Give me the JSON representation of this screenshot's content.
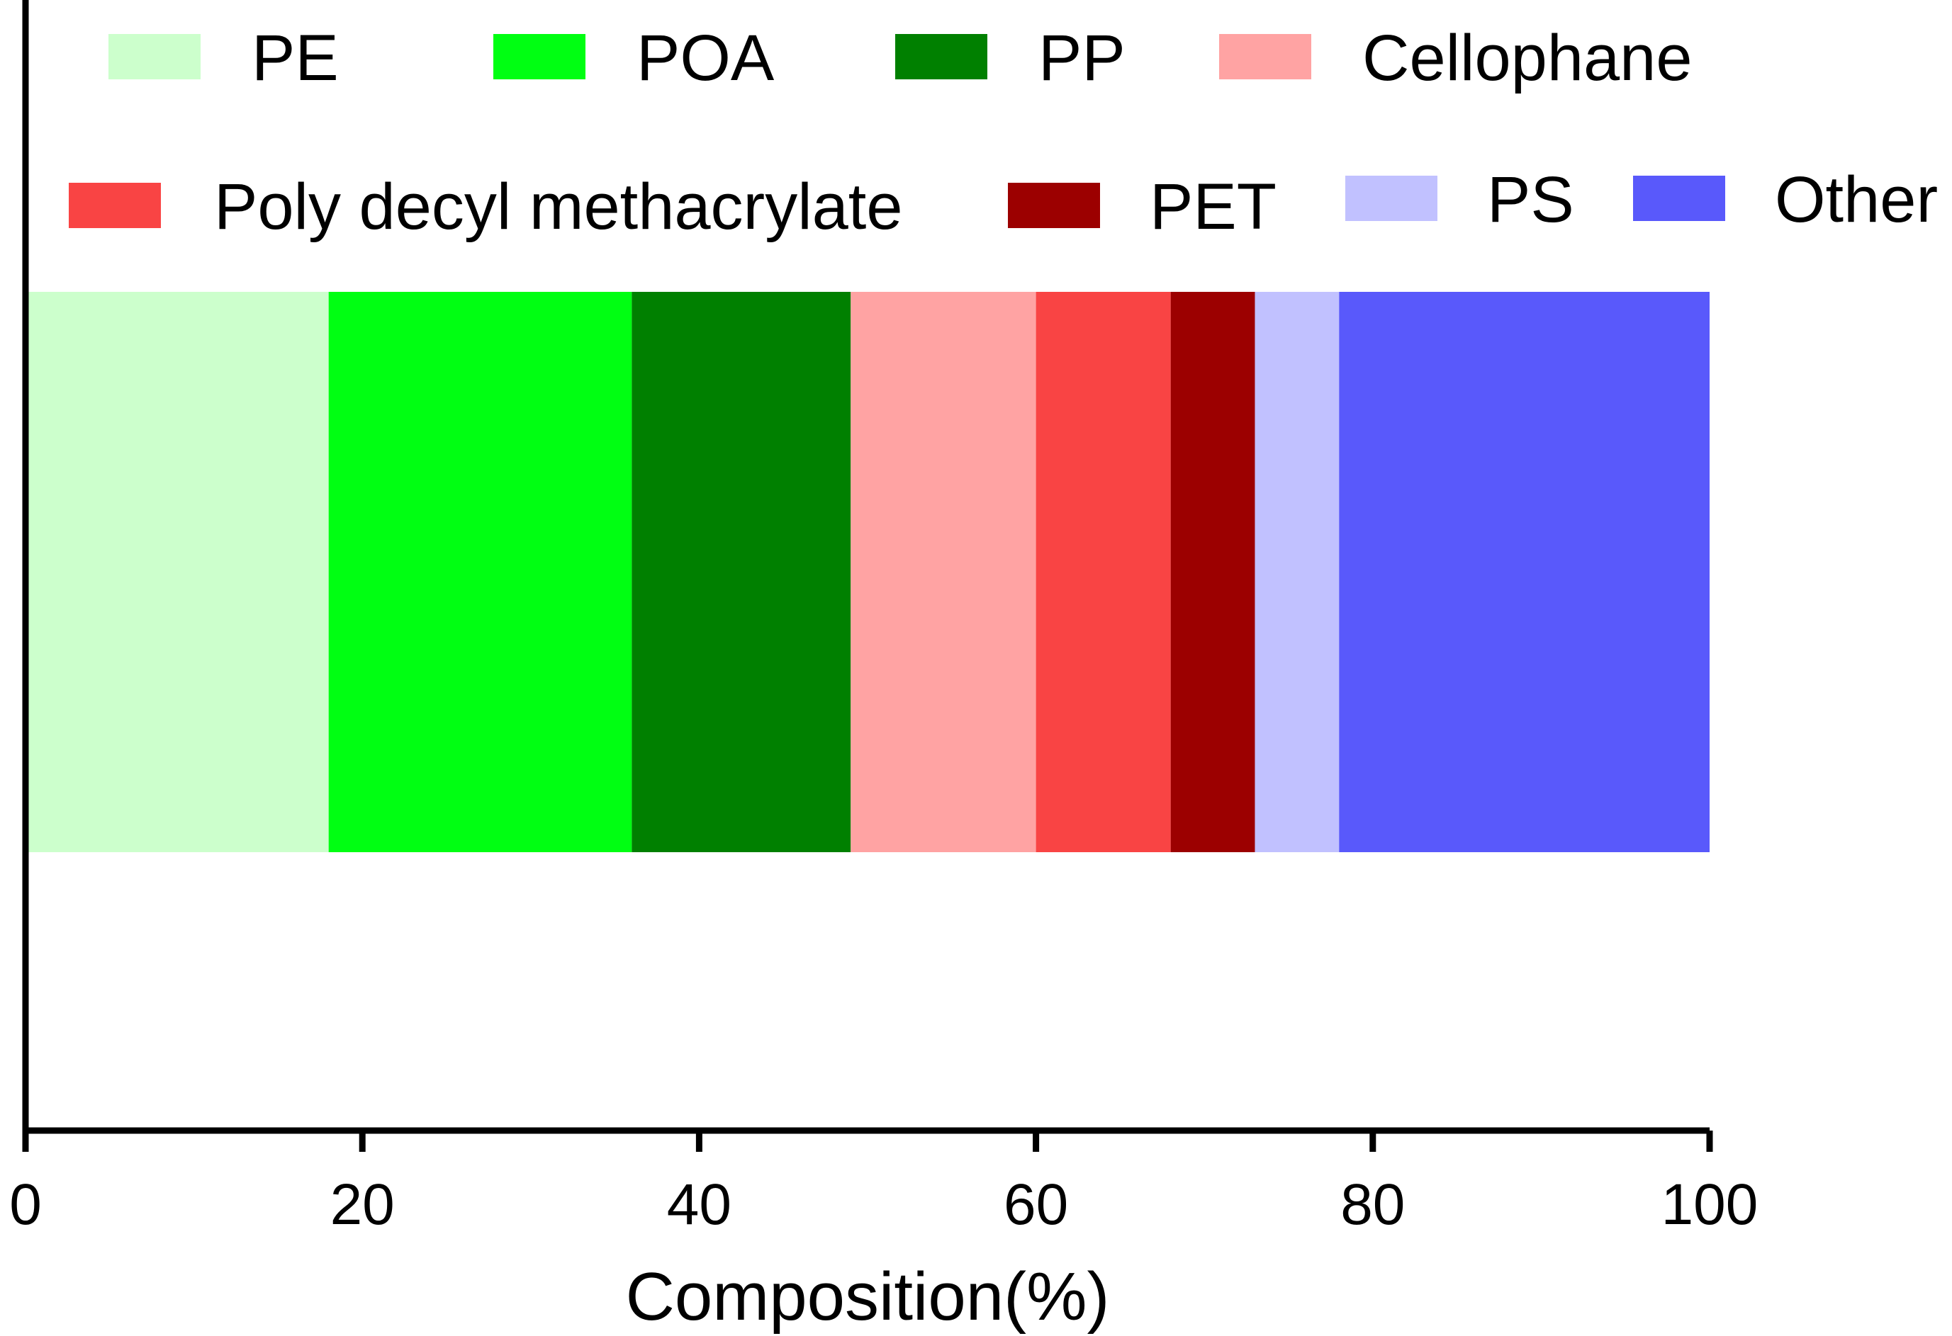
{
  "chart_data": {
    "type": "bar",
    "orientation": "horizontal",
    "stacked": true,
    "title": "",
    "xlabel": "Composition(%)",
    "ylabel": "",
    "xlim": [
      0,
      100
    ],
    "x_ticks": [
      "0",
      "20",
      "40",
      "60",
      "80",
      "100"
    ],
    "categories": [
      ""
    ],
    "series": [
      {
        "name": "PE",
        "values": [
          18
        ],
        "color": "#ccffcc"
      },
      {
        "name": "POA",
        "values": [
          18
        ],
        "color": "#00ff12"
      },
      {
        "name": "PP",
        "values": [
          13
        ],
        "color": "#008000"
      },
      {
        "name": "Cellophane",
        "values": [
          11
        ],
        "color": "#ffa3a3"
      },
      {
        "name": "Poly decyl methacrylate",
        "values": [
          8
        ],
        "color": "#f94444"
      },
      {
        "name": "PET",
        "values": [
          5
        ],
        "color": "#9c0000"
      },
      {
        "name": "PS",
        "values": [
          5
        ],
        "color": "#c1c1ff"
      },
      {
        "name": "Other",
        "values": [
          22
        ],
        "color": "#5959fb"
      }
    ],
    "legend_position": "top",
    "grid": false
  }
}
